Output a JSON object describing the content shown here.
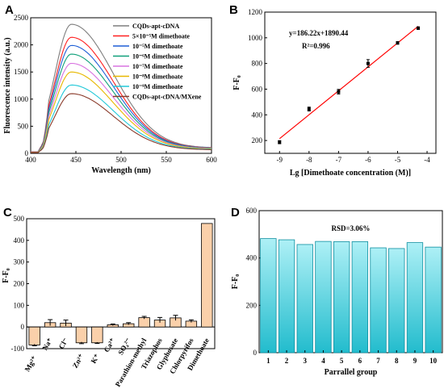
{
  "chart_data": [
    {
      "panel": "A",
      "type": "line",
      "xlabel": "Wavelength (nm)",
      "ylabel": "Fluorescence intensity (a.u.)",
      "xlim": [
        400,
        600
      ],
      "ylim": [
        0,
        2500
      ],
      "xticks": [
        400,
        450,
        500,
        550,
        600
      ],
      "yticks": [
        0,
        500,
        1000,
        1500,
        2000,
        2500
      ],
      "peak_wavelength": 445,
      "legend_position": "top-right",
      "series": [
        {
          "name": "CQDs-apt-cDNA",
          "peak": 2380,
          "tail": 100,
          "color": "#7f7f7f"
        },
        {
          "name": "5×10⁻⁵M dimethoate",
          "peak": 2140,
          "tail": 95,
          "color": "#ff2020"
        },
        {
          "name": "10⁻⁵M dimethoate",
          "peak": 1990,
          "tail": 92,
          "color": "#1f5fd6"
        },
        {
          "name": "10⁻⁶M dimethoate",
          "peak": 1830,
          "tail": 88,
          "color": "#10a07a"
        },
        {
          "name": "10⁻⁷M dimethoate",
          "peak": 1660,
          "tail": 85,
          "color": "#d873e0"
        },
        {
          "name": "10⁻⁸M dimethoate",
          "peak": 1500,
          "tail": 80,
          "color": "#e8b800"
        },
        {
          "name": "10⁻⁹M dimethoate",
          "peak": 1260,
          "tail": 72,
          "color": "#20c8d8"
        },
        {
          "name": "CQDs-apt-cDNA/MXene",
          "peak": 1100,
          "tail": 65,
          "color": "#8a3a2a"
        }
      ]
    },
    {
      "panel": "B",
      "type": "scatter",
      "xlabel": "Lg [Dimethoate concentration (M)]",
      "ylabel": "F-F₀",
      "xlim": [
        -9.5,
        -3.7
      ],
      "ylim": [
        100,
        1200
      ],
      "xticks": [
        -9,
        -8,
        -7,
        -6,
        -5,
        -4
      ],
      "yticks": [
        200,
        400,
        600,
        800,
        1000,
        1200
      ],
      "points": [
        {
          "x": -9,
          "y": 187,
          "err": 12
        },
        {
          "x": -8,
          "y": 445,
          "err": 15
        },
        {
          "x": -7,
          "y": 580,
          "err": 18
        },
        {
          "x": -6,
          "y": 800,
          "err": 30
        },
        {
          "x": -5,
          "y": 960,
          "err": 10
        },
        {
          "x": -4.3,
          "y": 1075,
          "err": 10
        }
      ],
      "fit": {
        "x": [
          -9,
          -4.3
        ],
        "slope": 186.22,
        "intercept": 1890.44
      },
      "equation": "y=186.22x+1890.44",
      "r2": "R²=0.996",
      "fit_color": "#ff0000"
    },
    {
      "panel": "C",
      "type": "bar",
      "ylabel": "F-F₀",
      "ylim": [
        -100,
        500
      ],
      "yticks": [
        -100,
        0,
        100,
        200,
        300,
        400,
        500
      ],
      "categories": [
        "Mg²⁺",
        "Na⁺",
        "Cl⁻",
        "Zn²⁺",
        "K⁺",
        "Ca²⁺",
        "SO₄²⁻",
        "Parathion-methyl",
        "Triazophos",
        "Glyphosate",
        "Chlorpyrifos",
        "Dimethoate"
      ],
      "values": [
        -83,
        20,
        18,
        -73,
        -73,
        10,
        15,
        43,
        32,
        42,
        27,
        478
      ],
      "errors": [
        4,
        14,
        14,
        4,
        3,
        4,
        5,
        6,
        12,
        12,
        6,
        0
      ],
      "bar_color": "#fad0aa"
    },
    {
      "panel": "D",
      "type": "bar",
      "xlabel": "Parrallel group",
      "ylabel": "F-F₀",
      "ylim": [
        0,
        600
      ],
      "yticks": [
        0,
        200,
        400,
        600
      ],
      "categories": [
        "1",
        "2",
        "3",
        "4",
        "5",
        "6",
        "7",
        "8",
        "9",
        "10"
      ],
      "values": [
        482,
        477,
        457,
        470,
        469,
        469,
        443,
        440,
        465,
        446
      ],
      "annotation": "RSD=3.06%",
      "bar_color_top": "#aef0f6",
      "bar_color_bottom": "#22bccd"
    }
  ],
  "panel_labels": [
    "A",
    "B",
    "C",
    "D"
  ]
}
